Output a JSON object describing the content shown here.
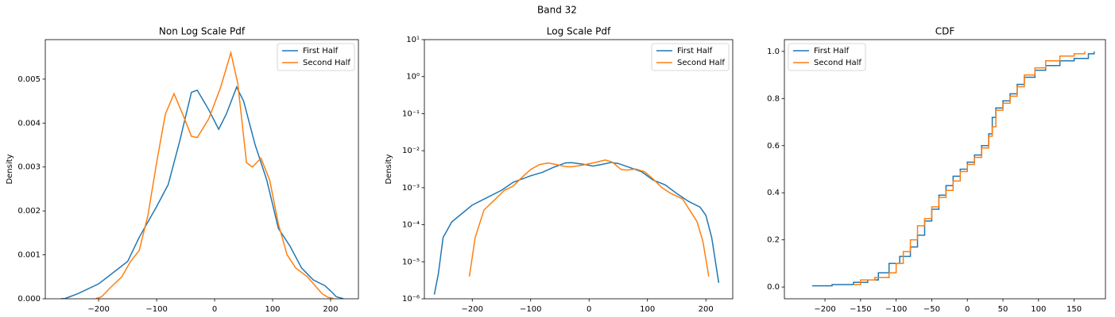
{
  "title": "Band 32",
  "chart_data": [
    {
      "type": "line",
      "title": "Non Log Scale Pdf",
      "ylabel": "Density",
      "yscale": "linear",
      "grid": false,
      "legend": "upper right",
      "xlim": [
        -292,
        248
      ],
      "ylim": [
        0,
        0.0059
      ],
      "xticks": [
        {
          "value": -200,
          "label": "−200"
        },
        {
          "value": -100,
          "label": "−100"
        },
        {
          "value": 0,
          "label": "0"
        },
        100,
        200
      ],
      "yticks": [
        {
          "value": 0,
          "label": "0.000"
        },
        0.001,
        0.002,
        0.003,
        0.004,
        0.005
      ],
      "series": [
        {
          "name": "First Half",
          "color": "#1f77b4",
          "x": [
            -265,
            -258,
            -250,
            -235,
            -200,
            -150,
            -130,
            -100,
            -80,
            -60,
            -40,
            -30,
            -10,
            7,
            20,
            38,
            50,
            70,
            90,
            110,
            130,
            150,
            170,
            190,
            200,
            210,
            222
          ],
          "values": [
            1.3e-06,
            4.8e-06,
            4.5e-05,
            0.00012,
            0.00034,
            0.00085,
            0.0014,
            0.0021,
            0.0026,
            0.0036,
            0.0047,
            0.00475,
            0.0043,
            0.00386,
            0.0042,
            0.00482,
            0.0045,
            0.0035,
            0.0027,
            0.0016,
            0.0012,
            0.0007,
            0.00043,
            0.0003,
            0.00018,
            4.5e-05,
            2.7e-06
          ]
        },
        {
          "name": "Second Half",
          "color": "#ff7f0e",
          "x": [
            -205,
            -195,
            -180,
            -160,
            -145,
            -130,
            -115,
            -100,
            -85,
            -70,
            -55,
            -40,
            -30,
            -10,
            10,
            28,
            40,
            55,
            65,
            80,
            95,
            110,
            125,
            140,
            160,
            185,
            195,
            205
          ],
          "values": [
            4e-06,
            4.5e-05,
            0.00025,
            0.0005,
            0.00085,
            0.0011,
            0.0019,
            0.0031,
            0.0042,
            0.00467,
            0.0042,
            0.0037,
            0.00367,
            0.0041,
            0.0048,
            0.0056,
            0.0049,
            0.0031,
            0.003,
            0.0032,
            0.0027,
            0.0017,
            0.001,
            0.0007,
            0.0005,
            0.00012,
            3.5e-05,
            4e-06
          ]
        }
      ]
    },
    {
      "type": "line",
      "title": "Log Scale Pdf",
      "ylabel": "Density",
      "yscale": "log",
      "grid": false,
      "legend": "upper right",
      "xlim": [
        -282,
        246
      ],
      "ylim": [
        1e-06,
        10
      ],
      "xticks": [
        {
          "value": -200,
          "label": "−200"
        },
        {
          "value": -100,
          "label": "−100"
        },
        {
          "value": 0,
          "label": "0"
        },
        100,
        200
      ],
      "yticks": [
        {
          "value": 1e-06,
          "label": "10⁻⁶"
        },
        {
          "value": 1e-05,
          "label": "10⁻⁵"
        },
        {
          "value": 0.0001,
          "label": "10⁻⁴"
        },
        {
          "value": 0.001,
          "label": "10⁻³"
        },
        {
          "value": 0.01,
          "label": "10⁻²"
        },
        {
          "value": 0.1,
          "label": "10⁻¹"
        },
        {
          "value": 1,
          "label": "10⁰"
        },
        {
          "value": 10,
          "label": "10¹"
        }
      ],
      "series": [
        {
          "name": "First Half",
          "color": "#1f77b4",
          "x": [
            -265,
            -258,
            -250,
            -235,
            -200,
            -150,
            -130,
            -100,
            -80,
            -60,
            -40,
            -30,
            -10,
            7,
            20,
            38,
            50,
            70,
            90,
            110,
            130,
            150,
            170,
            190,
            200,
            210,
            222
          ],
          "values": [
            1.3e-06,
            4.8e-06,
            4.5e-05,
            0.00012,
            0.00034,
            0.00085,
            0.0014,
            0.0021,
            0.0026,
            0.0036,
            0.0047,
            0.00475,
            0.0043,
            0.00386,
            0.0042,
            0.00482,
            0.0045,
            0.0035,
            0.0027,
            0.0016,
            0.0012,
            0.0007,
            0.00043,
            0.0003,
            0.00018,
            4.5e-05,
            2.7e-06
          ]
        },
        {
          "name": "Second Half",
          "color": "#ff7f0e",
          "x": [
            -205,
            -195,
            -180,
            -160,
            -145,
            -130,
            -115,
            -100,
            -85,
            -70,
            -55,
            -40,
            -30,
            -10,
            10,
            28,
            40,
            55,
            65,
            80,
            95,
            110,
            125,
            140,
            160,
            185,
            195,
            205
          ],
          "values": [
            4e-06,
            4.5e-05,
            0.00025,
            0.0005,
            0.00085,
            0.0011,
            0.0019,
            0.0031,
            0.0042,
            0.00467,
            0.0042,
            0.0037,
            0.00367,
            0.0041,
            0.0048,
            0.0056,
            0.0049,
            0.0031,
            0.003,
            0.0032,
            0.0027,
            0.0017,
            0.001,
            0.0007,
            0.0005,
            0.00012,
            3.5e-05,
            4e-06
          ]
        }
      ]
    },
    {
      "type": "step",
      "title": "CDF",
      "yscale": "linear",
      "grid": false,
      "legend": "upper left",
      "xlim": [
        -257,
        194
      ],
      "ylim": [
        -0.05,
        1.05
      ],
      "xticks": [
        {
          "value": -200,
          "label": "−200"
        },
        {
          "value": -150,
          "label": "−150"
        },
        {
          "value": -100,
          "label": "−100"
        },
        {
          "value": -50,
          "label": "−50"
        },
        {
          "value": 0,
          "label": "0"
        },
        50,
        100,
        150
      ],
      "yticks": [
        {
          "value": 0,
          "label": "0.0"
        },
        0.2,
        0.4,
        0.6,
        0.8,
        {
          "value": 1,
          "label": "1.0"
        }
      ],
      "series": [
        {
          "name": "First Half",
          "color": "#1f77b4",
          "x": [
            -218,
            -190,
            -160,
            -140,
            -125,
            -110,
            -95,
            -80,
            -70,
            -60,
            -50,
            -40,
            -30,
            -20,
            -10,
            0,
            10,
            20,
            30,
            35,
            40,
            50,
            60,
            70,
            80,
            95,
            110,
            130,
            150,
            170,
            178
          ],
          "values": [
            0.005,
            0.01,
            0.02,
            0.03,
            0.06,
            0.1,
            0.13,
            0.17,
            0.22,
            0.28,
            0.33,
            0.39,
            0.43,
            0.47,
            0.5,
            0.53,
            0.56,
            0.6,
            0.65,
            0.72,
            0.76,
            0.79,
            0.82,
            0.86,
            0.89,
            0.92,
            0.94,
            0.96,
            0.97,
            0.99,
            1.0
          ]
        },
        {
          "name": "Second Half",
          "color": "#ff7f0e",
          "x": [
            -160,
            -150,
            -130,
            -110,
            -100,
            -90,
            -80,
            -70,
            -60,
            -50,
            -40,
            -30,
            -20,
            -10,
            0,
            10,
            20,
            30,
            35,
            40,
            50,
            60,
            70,
            80,
            95,
            110,
            130,
            150,
            165
          ],
          "values": [
            0.01,
            0.03,
            0.04,
            0.06,
            0.1,
            0.15,
            0.2,
            0.26,
            0.29,
            0.34,
            0.38,
            0.41,
            0.45,
            0.49,
            0.52,
            0.55,
            0.59,
            0.64,
            0.68,
            0.75,
            0.78,
            0.81,
            0.85,
            0.9,
            0.93,
            0.96,
            0.98,
            0.99,
            1.0
          ]
        }
      ]
    }
  ]
}
